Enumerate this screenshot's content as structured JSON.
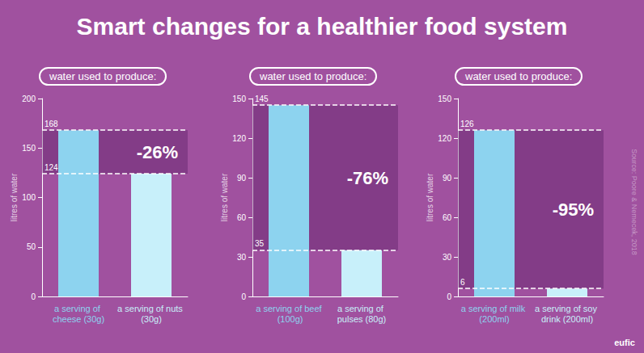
{
  "title": "Smart changes for a healthier food system",
  "source": "Source: Poore & Nemecek, 2018",
  "logo": "eufic",
  "chart_data": [
    {
      "type": "bar",
      "title": "water used to produce:",
      "y_label": "litres of water",
      "categories": [
        "a serving of cheese (30g)",
        "a serving of nuts (30g)"
      ],
      "values": [
        168,
        124
      ],
      "colors": [
        "#8dd3ef",
        "#c8f0fa"
      ],
      "ylim": [
        0,
        200
      ],
      "yticks": [
        0,
        50,
        100,
        150,
        200
      ],
      "grid": false,
      "data_labels": true,
      "annotation": "-26%"
    },
    {
      "type": "bar",
      "title": "water used to produce:",
      "y_label": "litres of water",
      "categories": [
        "a serving of beef (100g)",
        "a serving of pulses (80g)"
      ],
      "values": [
        145,
        35
      ],
      "colors": [
        "#8dd3ef",
        "#c8f0fa"
      ],
      "ylim": [
        0,
        150
      ],
      "yticks": [
        0,
        30,
        60,
        90,
        120,
        150
      ],
      "grid": false,
      "data_labels": true,
      "annotation": "-76%"
    },
    {
      "type": "bar",
      "title": "water used to produce:",
      "y_label": "litres of water",
      "categories": [
        "a serving of milk (200ml)",
        "a serving of soy drink (200ml)"
      ],
      "values": [
        126,
        6
      ],
      "colors": [
        "#8dd3ef",
        "#c8f0fa"
      ],
      "ylim": [
        0,
        150
      ],
      "yticks": [
        0,
        30,
        60,
        90,
        120,
        150
      ],
      "grid": false,
      "data_labels": true,
      "annotation": "-95%"
    }
  ]
}
